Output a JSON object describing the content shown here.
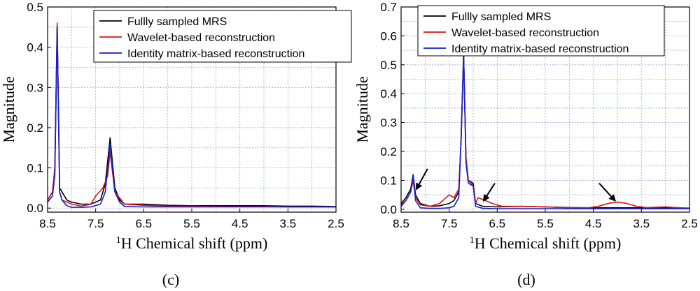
{
  "panels": [
    {
      "caption": "(c)",
      "chart_data": {
        "type": "line",
        "xlabel_sup": "1",
        "xlabel": "H Chemical shift (ppm)",
        "ylabel": "Magnitude",
        "xlim": [
          8.5,
          2.5
        ],
        "ylim": [
          -0.01,
          0.5
        ],
        "xticks": [
          "8.5",
          "7.5",
          "6.5",
          "5.5",
          "4.5",
          "3.5",
          "2.5"
        ],
        "yticks": [
          "0.0",
          "0.1",
          "0.2",
          "0.3",
          "0.4",
          "0.5"
        ],
        "grid": true,
        "legend_position": "top-right",
        "series": [
          {
            "name": "Fullly sampled MRS",
            "color": "#000000",
            "points": [
              [
                8.5,
                0.02
              ],
              [
                8.4,
                0.04
              ],
              [
                8.35,
                0.09
              ],
              [
                8.3,
                0.45
              ],
              [
                8.25,
                0.05
              ],
              [
                8.2,
                0.04
              ],
              [
                8.1,
                0.02
              ],
              [
                8.0,
                0.015
              ],
              [
                7.8,
                0.01
              ],
              [
                7.6,
                0.01
              ],
              [
                7.4,
                0.02
              ],
              [
                7.3,
                0.06
              ],
              [
                7.2,
                0.175
              ],
              [
                7.1,
                0.05
              ],
              [
                7.0,
                0.02
              ],
              [
                6.9,
                0.01
              ],
              [
                6.5,
                0.01
              ],
              [
                6.0,
                0.007
              ],
              [
                5.5,
                0.006
              ],
              [
                5.0,
                0.006
              ],
              [
                4.5,
                0.006
              ],
              [
                4.0,
                0.006
              ],
              [
                3.5,
                0.005
              ],
              [
                3.0,
                0.005
              ],
              [
                2.5,
                0.004
              ]
            ]
          },
          {
            "name": "Wavelet-based reconstruction",
            "color": "#e01010",
            "points": [
              [
                8.5,
                0.02
              ],
              [
                8.4,
                0.04
              ],
              [
                8.35,
                0.1
              ],
              [
                8.3,
                0.46
              ],
              [
                8.25,
                0.04
              ],
              [
                8.2,
                0.02
              ],
              [
                8.1,
                0.015
              ],
              [
                8.0,
                0.01
              ],
              [
                7.8,
                0.005
              ],
              [
                7.6,
                0.01
              ],
              [
                7.5,
                0.03
              ],
              [
                7.35,
                0.05
              ],
              [
                7.25,
                0.08
              ],
              [
                7.2,
                0.14
              ],
              [
                7.1,
                0.04
              ],
              [
                7.0,
                0.025
              ],
              [
                6.9,
                0.01
              ],
              [
                6.5,
                0.007
              ],
              [
                6.0,
                0.005
              ],
              [
                5.5,
                0.005
              ],
              [
                5.0,
                0.004
              ],
              [
                4.5,
                0.004
              ],
              [
                4.0,
                0.004
              ],
              [
                3.5,
                0.003
              ],
              [
                3.0,
                0.003
              ],
              [
                2.5,
                0.003
              ]
            ]
          },
          {
            "name": "Identity matrix-based reconstruction",
            "color": "#1020d0",
            "points": [
              [
                8.5,
                0.015
              ],
              [
                8.4,
                0.03
              ],
              [
                8.35,
                0.08
              ],
              [
                8.3,
                0.45
              ],
              [
                8.25,
                0.04
              ],
              [
                8.2,
                0.02
              ],
              [
                8.1,
                0.006
              ],
              [
                8.0,
                0.002
              ],
              [
                7.8,
                0.002
              ],
              [
                7.6,
                0.003
              ],
              [
                7.4,
                0.01
              ],
              [
                7.3,
                0.04
              ],
              [
                7.2,
                0.16
              ],
              [
                7.1,
                0.04
              ],
              [
                7.0,
                0.015
              ],
              [
                6.9,
                0.004
              ],
              [
                6.5,
                0.003
              ],
              [
                6.0,
                0.003
              ],
              [
                5.5,
                0.003
              ],
              [
                5.0,
                0.003
              ],
              [
                4.5,
                0.003
              ],
              [
                4.0,
                0.003
              ],
              [
                3.5,
                0.003
              ],
              [
                3.0,
                0.003
              ],
              [
                2.5,
                0.003
              ]
            ]
          }
        ]
      }
    },
    {
      "caption": "(d)",
      "chart_data": {
        "type": "line",
        "xlabel_sup": "1",
        "xlabel": "H Chemical shift (ppm)",
        "ylabel": "Magnitude",
        "xlim": [
          8.5,
          2.5
        ],
        "ylim": [
          -0.01,
          0.7
        ],
        "xticks": [
          "8.5",
          "7.5",
          "6.5",
          "5.5",
          "4.5",
          "3.5",
          "2.5"
        ],
        "yticks": [
          "0.0",
          "0.1",
          "0.2",
          "0.3",
          "0.4",
          "0.5",
          "0.6",
          "0.7"
        ],
        "grid": true,
        "legend_position": "top-right",
        "annotations": [
          {
            "type": "arrow",
            "from": [
              7.95,
              0.14
            ],
            "to": [
              8.18,
              0.07
            ]
          },
          {
            "type": "arrow",
            "from": [
              6.55,
              0.09
            ],
            "to": [
              6.78,
              0.03
            ]
          },
          {
            "type": "arrow",
            "from": [
              4.38,
              0.09
            ],
            "to": [
              4.05,
              0.03
            ]
          }
        ],
        "series": [
          {
            "name": "Fullly sampled MRS",
            "color": "#000000",
            "points": [
              [
                8.5,
                0.02
              ],
              [
                8.4,
                0.04
              ],
              [
                8.3,
                0.07
              ],
              [
                8.25,
                0.12
              ],
              [
                8.2,
                0.05
              ],
              [
                8.1,
                0.02
              ],
              [
                7.9,
                0.01
              ],
              [
                7.7,
                0.012
              ],
              [
                7.5,
                0.02
              ],
              [
                7.4,
                0.03
              ],
              [
                7.3,
                0.06
              ],
              [
                7.25,
                0.25
              ],
              [
                7.2,
                0.54
              ],
              [
                7.15,
                0.17
              ],
              [
                7.1,
                0.1
              ],
              [
                7.0,
                0.09
              ],
              [
                6.95,
                0.02
              ],
              [
                6.8,
                0.01
              ],
              [
                6.5,
                0.008
              ],
              [
                6.0,
                0.01
              ],
              [
                5.5,
                0.008
              ],
              [
                5.0,
                0.006
              ],
              [
                4.5,
                0.005
              ],
              [
                4.0,
                0.005
              ],
              [
                3.5,
                0.005
              ],
              [
                3.0,
                0.005
              ],
              [
                2.5,
                0.004
              ]
            ]
          },
          {
            "name": "Wavelet-based reconstruction",
            "color": "#e01010",
            "points": [
              [
                8.5,
                0.015
              ],
              [
                8.4,
                0.03
              ],
              [
                8.3,
                0.06
              ],
              [
                8.25,
                0.1
              ],
              [
                8.2,
                0.04
              ],
              [
                8.1,
                0.015
              ],
              [
                7.9,
                0.01
              ],
              [
                7.7,
                0.02
              ],
              [
                7.5,
                0.05
              ],
              [
                7.4,
                0.04
              ],
              [
                7.3,
                0.07
              ],
              [
                7.25,
                0.24
              ],
              [
                7.2,
                0.53
              ],
              [
                7.15,
                0.18
              ],
              [
                7.1,
                0.1
              ],
              [
                7.0,
                0.08
              ],
              [
                6.95,
                0.02
              ],
              [
                6.9,
                0.04
              ],
              [
                6.75,
                0.03
              ],
              [
                6.6,
                0.02
              ],
              [
                6.4,
                0.01
              ],
              [
                6.0,
                0.01
              ],
              [
                5.5,
                0.008
              ],
              [
                5.0,
                0.005
              ],
              [
                4.6,
                0.005
              ],
              [
                4.4,
                0.01
              ],
              [
                4.2,
                0.02
              ],
              [
                4.0,
                0.025
              ],
              [
                3.8,
                0.02
              ],
              [
                3.6,
                0.01
              ],
              [
                3.4,
                0.006
              ],
              [
                3.0,
                0.008
              ],
              [
                2.5,
                0.003
              ]
            ]
          },
          {
            "name": "Identity matrix-based reconstruction",
            "color": "#1020d0",
            "points": [
              [
                8.5,
                0.01
              ],
              [
                8.4,
                0.03
              ],
              [
                8.3,
                0.06
              ],
              [
                8.25,
                0.12
              ],
              [
                8.2,
                0.03
              ],
              [
                8.1,
                0.005
              ],
              [
                7.9,
                0.003
              ],
              [
                7.7,
                0.003
              ],
              [
                7.5,
                0.005
              ],
              [
                7.4,
                0.01
              ],
              [
                7.3,
                0.04
              ],
              [
                7.25,
                0.25
              ],
              [
                7.2,
                0.54
              ],
              [
                7.15,
                0.16
              ],
              [
                7.1,
                0.09
              ],
              [
                7.0,
                0.08
              ],
              [
                6.95,
                0.01
              ],
              [
                6.8,
                0.003
              ],
              [
                6.5,
                0.002
              ],
              [
                6.0,
                0.002
              ],
              [
                5.5,
                0.002
              ],
              [
                5.0,
                0.002
              ],
              [
                4.5,
                0.002
              ],
              [
                4.0,
                0.002
              ],
              [
                3.5,
                0.002
              ],
              [
                3.0,
                0.002
              ],
              [
                2.5,
                0.002
              ]
            ]
          }
        ]
      }
    }
  ]
}
